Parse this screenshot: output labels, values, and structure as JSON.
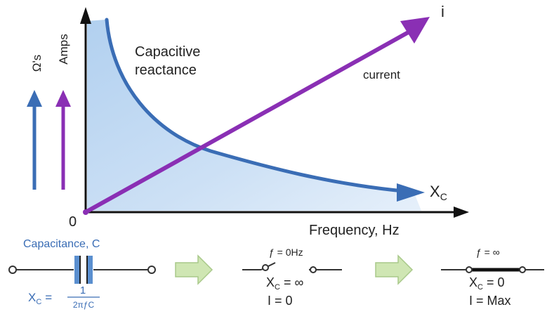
{
  "graph": {
    "y_units": {
      "ohms": "Ω's",
      "amps": "Amps"
    },
    "origin_label": "0",
    "x_axis_label": "Frequency, Hz",
    "reactance_label_line1": "Capacitive",
    "reactance_label_line2": "reactance",
    "current_label": "current",
    "current_symbol": "i",
    "xc_symbol": "X",
    "xc_subscript": "C"
  },
  "circuits": {
    "capacitor": {
      "title": "Capacitance, C",
      "formula_lhs_main": "X",
      "formula_lhs_sub": "C",
      "formula_equals": "=",
      "formula_numerator": "1",
      "formula_denominator": "2πƒC"
    },
    "zero_frequency": {
      "freq_label": "ƒ = 0Hz",
      "xc_main": "X",
      "xc_sub": "C",
      "xc_rest": " = ∞",
      "current": "I = 0"
    },
    "infinite_frequency": {
      "freq_label": "ƒ = ∞",
      "xc_main": "X",
      "xc_sub": "C",
      "xc_rest": " = 0",
      "current": "I = Max"
    }
  },
  "colors": {
    "reactance": "#3a6db5",
    "current": "#8a2fb4",
    "fill": "#b9d6f2",
    "axis": "#111111",
    "arrow_green": "#cfe6b3",
    "arrow_green_stroke": "#a9c98a",
    "capacitor_plate": "#5a8fcf",
    "text_blue": "#3a6db5"
  }
}
